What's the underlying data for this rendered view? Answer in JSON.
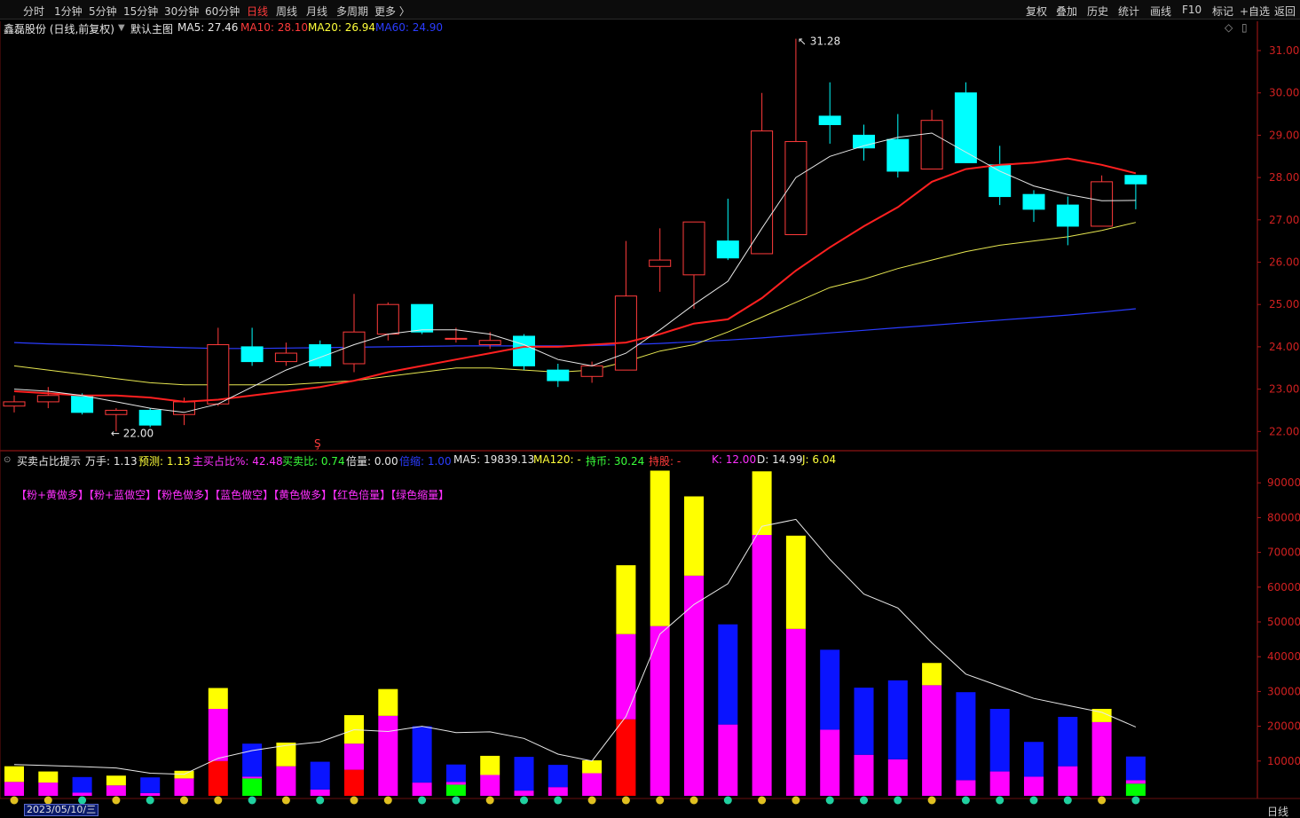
{
  "toolbar": {
    "periods": [
      "分时",
      "1分钟",
      "5分钟",
      "15分钟",
      "30分钟",
      "60分钟",
      "日线",
      "周线",
      "月线",
      "多周期",
      "更多 〉"
    ],
    "active_period": "日线",
    "tools": [
      "复权",
      "叠加",
      "历史",
      "统计",
      "画线",
      "F10",
      "标记",
      "+自选",
      "返回"
    ]
  },
  "main_legend": {
    "title": "鑫磊股份 (日线,前复权)",
    "template": "默认主图",
    "ma5": "MA5: 27.46",
    "ma10": "MA10: 28.10",
    "ma20": "MA20: 26.94",
    "ma60": "MA60: 24.90"
  },
  "sub_legend": {
    "name": "买卖占比提示",
    "items": [
      "万手: 1.13",
      "预测: 1.13",
      "主买占比%: 42.48",
      "买卖比: 0.74",
      "倍量: 0.00",
      "倍缩: 1.00",
      "MA5: 19839.13",
      "MA120: -",
      "持币: 30.24",
      "持股: -",
      "K: 12.00",
      "D: 14.99",
      "J: 6.04"
    ],
    "tags": "【粉+黄做多】【粉+蓝做空】【粉色做多】【蓝色做空】【黄色做多】【红色倍量】【绿色缩量】"
  },
  "crosshair": {
    "date": "2023/05/10/三"
  },
  "footer": {
    "period": "日线"
  },
  "colors": {
    "up": "#ff3b3b",
    "down": "#00ffff",
    "ma5": "#e8e8e8",
    "ma10": "#ff2020",
    "ma20": "#e6e650",
    "ma60": "#2a3cff",
    "axis": "#b01818",
    "pink": "#ff00ff",
    "yellow": "#ffff00",
    "blue": "#0a14ff",
    "red": "#ff0000",
    "green": "#00ff00"
  },
  "chart_data": [
    {
      "type": "candlestick",
      "title": "鑫磊股份 (日线,前复权)",
      "ylim": [
        21.7,
        31.9
      ],
      "y_ticks": [
        22.0,
        23.0,
        24.0,
        25.0,
        26.0,
        27.0,
        28.0,
        29.0,
        30.0,
        31.0
      ],
      "annotations": [
        {
          "label": "31.28",
          "kind": "high",
          "index": 23
        },
        {
          "label": "22.00",
          "kind": "low",
          "index": 3
        }
      ],
      "candles": [
        [
          22.6,
          22.7,
          22.45,
          22.85
        ],
        [
          22.7,
          22.85,
          22.55,
          23.05
        ],
        [
          22.85,
          22.45,
          22.4,
          22.9
        ],
        [
          22.4,
          22.5,
          22.0,
          22.55
        ],
        [
          22.5,
          22.15,
          22.1,
          22.55
        ],
        [
          22.4,
          22.7,
          22.15,
          22.8
        ],
        [
          22.65,
          24.05,
          22.6,
          24.45
        ],
        [
          24.0,
          23.65,
          23.55,
          24.45
        ],
        [
          23.65,
          23.85,
          23.55,
          24.1
        ],
        [
          24.05,
          23.55,
          23.5,
          24.15
        ],
        [
          23.6,
          24.35,
          23.4,
          25.25
        ],
        [
          24.3,
          25.0,
          24.15,
          25.05
        ],
        [
          25.0,
          24.35,
          24.3,
          25.0
        ],
        [
          24.2,
          24.2,
          24.1,
          24.45
        ],
        [
          24.05,
          24.15,
          23.95,
          24.35
        ],
        [
          24.25,
          23.55,
          23.45,
          24.3
        ],
        [
          23.45,
          23.2,
          23.05,
          23.6
        ],
        [
          23.3,
          23.55,
          23.15,
          23.65
        ],
        [
          23.45,
          25.2,
          23.45,
          26.5
        ],
        [
          25.9,
          26.05,
          25.3,
          26.8
        ],
        [
          25.7,
          26.95,
          24.9,
          26.95
        ],
        [
          26.5,
          26.1,
          26.05,
          27.5
        ],
        [
          26.2,
          29.1,
          26.2,
          30.0
        ],
        [
          26.65,
          28.85,
          26.65,
          31.28
        ],
        [
          29.45,
          29.25,
          28.8,
          30.25
        ],
        [
          29.0,
          28.7,
          28.4,
          29.25
        ],
        [
          28.9,
          28.15,
          28.0,
          29.5
        ],
        [
          28.2,
          29.35,
          28.2,
          29.6
        ],
        [
          30.0,
          28.35,
          28.35,
          30.25
        ],
        [
          28.3,
          27.55,
          27.35,
          28.75
        ],
        [
          27.6,
          27.25,
          26.95,
          27.7
        ],
        [
          27.35,
          26.85,
          26.4,
          27.55
        ],
        [
          26.85,
          27.9,
          26.85,
          28.05
        ],
        [
          28.05,
          27.85,
          27.25,
          28.05
        ]
      ],
      "ma5": [
        23.0,
        22.95,
        22.85,
        22.7,
        22.55,
        22.45,
        22.65,
        23.05,
        23.45,
        23.75,
        24.05,
        24.3,
        24.4,
        24.4,
        24.3,
        24.05,
        23.7,
        23.55,
        23.85,
        24.4,
        25.0,
        25.55,
        26.8,
        28.0,
        28.5,
        28.75,
        28.95,
        29.05,
        28.6,
        28.15,
        27.8,
        27.6,
        27.45,
        27.46
      ],
      "ma10": [
        22.95,
        22.9,
        22.85,
        22.85,
        22.8,
        22.7,
        22.75,
        22.85,
        22.95,
        23.05,
        23.2,
        23.4,
        23.55,
        23.7,
        23.85,
        24.0,
        24.0,
        24.05,
        24.1,
        24.3,
        24.55,
        24.65,
        25.15,
        25.8,
        26.35,
        26.85,
        27.3,
        27.9,
        28.2,
        28.3,
        28.35,
        28.45,
        28.3,
        28.1
      ],
      "ma20": [
        23.55,
        23.45,
        23.35,
        23.25,
        23.15,
        23.1,
        23.1,
        23.1,
        23.1,
        23.15,
        23.2,
        23.3,
        23.4,
        23.5,
        23.5,
        23.45,
        23.4,
        23.45,
        23.65,
        23.9,
        24.05,
        24.35,
        24.7,
        25.05,
        25.4,
        25.6,
        25.85,
        26.05,
        26.25,
        26.4,
        26.5,
        26.6,
        26.75,
        26.94
      ],
      "ma60": [
        24.1,
        24.07,
        24.05,
        24.03,
        24.0,
        23.98,
        23.96,
        23.96,
        23.97,
        23.98,
        23.99,
        24.0,
        24.01,
        24.02,
        24.02,
        24.02,
        24.02,
        24.03,
        24.05,
        24.08,
        24.12,
        24.16,
        24.21,
        24.27,
        24.33,
        24.39,
        24.45,
        24.51,
        24.57,
        24.63,
        24.69,
        24.75,
        24.82,
        24.9
      ]
    },
    {
      "type": "bar",
      "title": "买卖占比提示",
      "ylim": [
        0,
        97000
      ],
      "y_ticks": [
        10000,
        20000,
        30000,
        40000,
        50000,
        60000,
        70000,
        80000,
        90000
      ],
      "series_order": [
        "red",
        "green",
        "pink",
        "blue",
        "yellow"
      ],
      "bars": [
        {
          "red": 0,
          "green": 0,
          "pink": 4000,
          "blue": 0,
          "yellow": 4500
        },
        {
          "red": 0,
          "green": 0,
          "pink": 3800,
          "blue": 0,
          "yellow": 3200
        },
        {
          "red": 0,
          "green": 0,
          "pink": 900,
          "blue": 4500,
          "yellow": 0
        },
        {
          "red": 0,
          "green": 0,
          "pink": 3000,
          "blue": 0,
          "yellow": 2800
        },
        {
          "red": 0,
          "green": 0,
          "pink": 800,
          "blue": 4500,
          "yellow": 0
        },
        {
          "red": 0,
          "green": 0,
          "pink": 5000,
          "blue": 0,
          "yellow": 2200
        },
        {
          "red": 10000,
          "green": 0,
          "pink": 15000,
          "blue": 0,
          "yellow": 6000
        },
        {
          "red": 0,
          "green": 5000,
          "pink": 500,
          "blue": 9500,
          "yellow": 0
        },
        {
          "red": 0,
          "green": 0,
          "pink": 8500,
          "blue": 0,
          "yellow": 6800
        },
        {
          "red": 0,
          "green": 0,
          "pink": 1800,
          "blue": 8000,
          "yellow": 0
        },
        {
          "red": 7500,
          "green": 0,
          "pink": 7500,
          "blue": 0,
          "yellow": 8200
        },
        {
          "red": 0,
          "green": 0,
          "pink": 23000,
          "blue": 0,
          "yellow": 7700
        },
        {
          "red": 0,
          "green": 0,
          "pink": 3800,
          "blue": 16200,
          "yellow": 0
        },
        {
          "red": 0,
          "green": 3200,
          "pink": 800,
          "blue": 5000,
          "yellow": 0
        },
        {
          "red": 0,
          "green": 0,
          "pink": 6000,
          "blue": 0,
          "yellow": 5500
        },
        {
          "red": 0,
          "green": 0,
          "pink": 1500,
          "blue": 9700,
          "yellow": 0
        },
        {
          "red": 0,
          "green": 0,
          "pink": 2500,
          "blue": 6400,
          "yellow": 0
        },
        {
          "red": 0,
          "green": 0,
          "pink": 6500,
          "blue": 0,
          "yellow": 3700
        },
        {
          "red": 22000,
          "green": 0,
          "pink": 24500,
          "blue": 0,
          "yellow": 19800
        },
        {
          "red": 0,
          "green": 0,
          "pink": 48800,
          "blue": 0,
          "yellow": 44700
        },
        {
          "red": 0,
          "green": 0,
          "pink": 63300,
          "blue": 0,
          "yellow": 22800
        },
        {
          "red": 0,
          "green": 0,
          "pink": 20500,
          "blue": 28800,
          "yellow": 0
        },
        {
          "red": 0,
          "green": 0,
          "pink": 75000,
          "blue": 0,
          "yellow": 18300
        },
        {
          "red": 0,
          "green": 0,
          "pink": 48000,
          "blue": 0,
          "yellow": 26800
        },
        {
          "red": 0,
          "green": 0,
          "pink": 19000,
          "blue": 23000,
          "yellow": 0
        },
        {
          "red": 0,
          "green": 0,
          "pink": 11800,
          "blue": 19300,
          "yellow": 0
        },
        {
          "red": 0,
          "green": 0,
          "pink": 10500,
          "blue": 22700,
          "yellow": 0
        },
        {
          "red": 0,
          "green": 0,
          "pink": 31800,
          "blue": 0,
          "yellow": 6400
        },
        {
          "red": 0,
          "green": 0,
          "pink": 4500,
          "blue": 25300,
          "yellow": 0
        },
        {
          "red": 0,
          "green": 0,
          "pink": 7000,
          "blue": 18000,
          "yellow": 0
        },
        {
          "red": 0,
          "green": 0,
          "pink": 5500,
          "blue": 10000,
          "yellow": 0
        },
        {
          "red": 0,
          "green": 0,
          "pink": 8500,
          "blue": 14200,
          "yellow": 0
        },
        {
          "red": 0,
          "green": 0,
          "pink": 21200,
          "blue": 0,
          "yellow": 3800
        },
        {
          "red": 0,
          "green": 3500,
          "pink": 1000,
          "blue": 6800,
          "yellow": 0
        }
      ],
      "ma5": [
        9000,
        8700,
        8400,
        8000,
        6500,
        6200,
        10800,
        13000,
        14500,
        15500,
        19000,
        18500,
        20000,
        18200,
        18400,
        16500,
        12000,
        10000,
        22800,
        46500,
        55000,
        61000,
        77500,
        79500,
        68000,
        58000,
        54000,
        44000,
        35000,
        31500,
        28000,
        26000,
        24000,
        19800
      ]
    }
  ]
}
